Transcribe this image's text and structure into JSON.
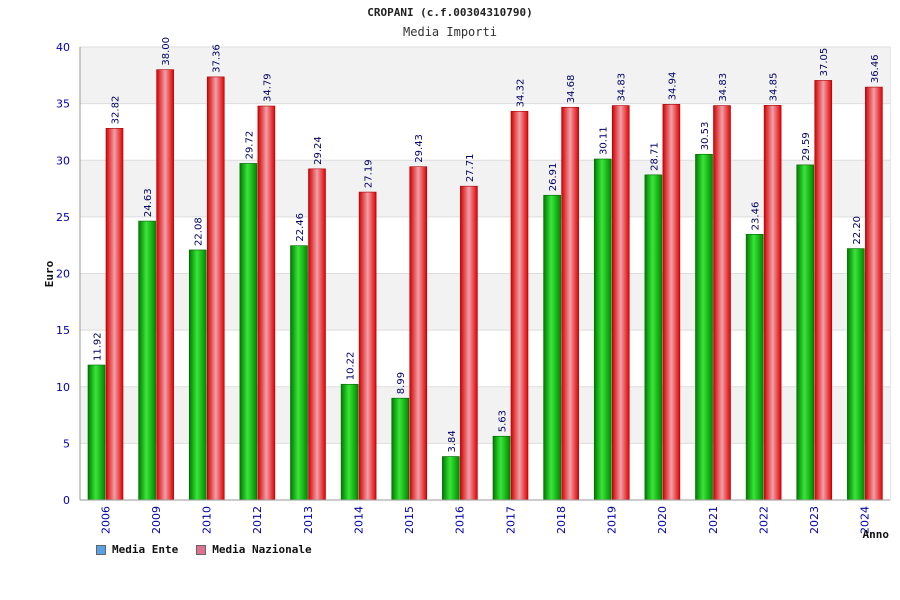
{
  "chart_data": {
    "type": "bar",
    "title": "CROPANI (c.f.00304310790)",
    "subtitle": "Media Importi",
    "xlabel": "Anno",
    "ylabel": "Euro",
    "ylim": [
      0,
      40
    ],
    "yticks": [
      0,
      5,
      10,
      15,
      20,
      25,
      30,
      35,
      40
    ],
    "grid": true,
    "legend_position": "bottom-left",
    "categories": [
      "2006",
      "2009",
      "2010",
      "2012",
      "2013",
      "2014",
      "2015",
      "2016",
      "2017",
      "2018",
      "2019",
      "2020",
      "2021",
      "2022",
      "2023",
      "2024"
    ],
    "series": [
      {
        "name": "Media Ente",
        "color": "#00aa00",
        "legend_color": "#5aa0e6",
        "values": [
          11.92,
          24.63,
          22.08,
          29.72,
          22.46,
          10.22,
          8.99,
          3.84,
          5.63,
          26.91,
          30.11,
          28.71,
          30.53,
          23.46,
          29.59,
          22.2
        ],
        "labels": [
          "11.92",
          "24.63",
          "22.08",
          "29.72",
          "22.46",
          "10.22",
          "8.99",
          "3.84",
          "5.63",
          "26.91",
          "30.11",
          "28.71",
          "30.53",
          "23.46",
          "29.59",
          "22.20"
        ]
      },
      {
        "name": "Media Nazionale",
        "color": "#ee0000",
        "legend_color": "#e07090",
        "values": [
          32.82,
          38.0,
          37.36,
          34.79,
          29.24,
          27.19,
          29.43,
          27.71,
          34.32,
          34.68,
          34.83,
          34.94,
          34.83,
          34.85,
          37.05,
          36.46
        ],
        "labels": [
          "32.82",
          "38.00",
          "37.36",
          "34.79",
          "29.24",
          "27.19",
          "29.43",
          "27.71",
          "34.32",
          "34.68",
          "34.83",
          "34.94",
          "34.83",
          "34.85",
          "37.05",
          "36.46"
        ]
      }
    ]
  }
}
